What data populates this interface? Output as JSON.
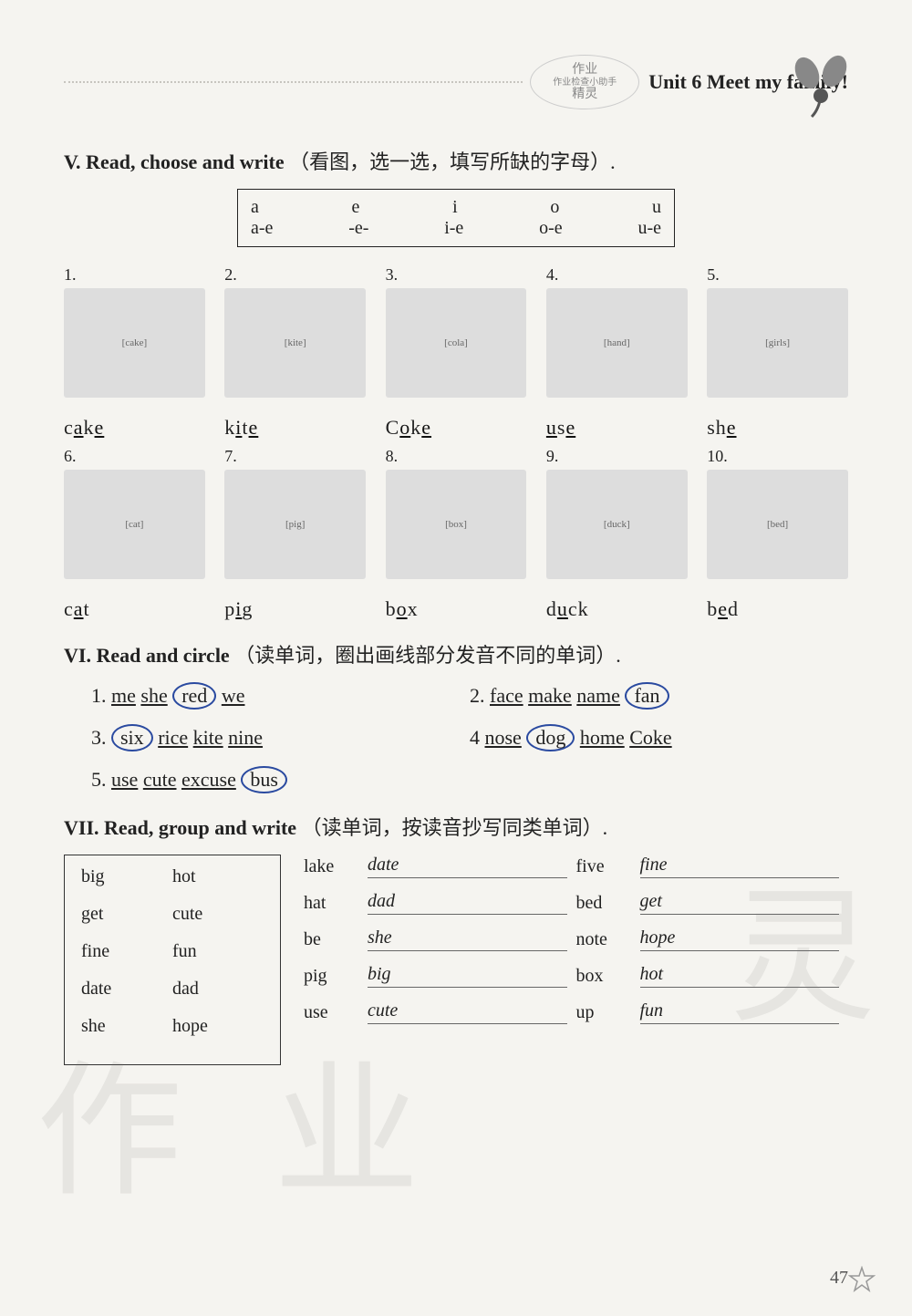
{
  "header": {
    "stamp_top": "作业",
    "stamp_mid": "作业检查小助手",
    "stamp_bot": "精灵",
    "unit_title": "Unit 6  Meet my family!"
  },
  "sectionV": {
    "title_en": "V. Read, choose and write",
    "title_cn": "（看图，选一选，填写所缺的字母）.",
    "vowels_row1": [
      "a",
      "e",
      "i",
      "o",
      "u"
    ],
    "vowels_row2": [
      "a-e",
      "-e-",
      "i-e",
      "o-e",
      "u-e"
    ],
    "items": [
      {
        "num": "1.",
        "img": "cake",
        "pre": "c",
        "ans": "a",
        "mid": "k",
        "ans2": "e",
        "post": ""
      },
      {
        "num": "2.",
        "img": "kite",
        "pre": "k",
        "ans": "i",
        "mid": "t",
        "ans2": "e",
        "post": ""
      },
      {
        "num": "3.",
        "img": "cola",
        "pre": "C",
        "ans": "o",
        "mid": "k",
        "ans2": "e",
        "post": ""
      },
      {
        "num": "4.",
        "img": "hand",
        "pre": "",
        "ans": "u",
        "mid": "s",
        "ans2": "e",
        "post": ""
      },
      {
        "num": "5.",
        "img": "girls",
        "pre": "sh",
        "ans": "e",
        "mid": "",
        "ans2": "",
        "post": ""
      },
      {
        "num": "6.",
        "img": "cat",
        "pre": "c",
        "ans": "a",
        "mid": "",
        "ans2": "",
        "post": "t"
      },
      {
        "num": "7.",
        "img": "pig",
        "pre": "p",
        "ans": "i",
        "mid": "",
        "ans2": "",
        "post": "g"
      },
      {
        "num": "8.",
        "img": "box",
        "pre": "b",
        "ans": "o",
        "mid": "",
        "ans2": "",
        "post": "x"
      },
      {
        "num": "9.",
        "img": "duck",
        "pre": "d",
        "ans": "u",
        "mid": "",
        "ans2": "",
        "post": "ck"
      },
      {
        "num": "10.",
        "img": "bed",
        "pre": "b",
        "ans": "e",
        "mid": "",
        "ans2": "",
        "post": "d"
      }
    ]
  },
  "sectionVI": {
    "title_en": "VI. Read and circle",
    "title_cn": "（读单词，圈出画线部分发音不同的单词）.",
    "lines": [
      {
        "num": "1.",
        "words": [
          "me",
          "she",
          "red",
          "we"
        ],
        "circled": "red"
      },
      {
        "num": "2.",
        "words": [
          "face",
          "make",
          "name",
          "fan"
        ],
        "circled": "fan"
      },
      {
        "num": "3.",
        "words": [
          "six",
          "rice",
          "kite",
          "nine"
        ],
        "circled": "six"
      },
      {
        "num": "4",
        "words": [
          "nose",
          "dog",
          "home",
          "Coke"
        ],
        "circled": "dog"
      },
      {
        "num": "5.",
        "words": [
          "use",
          "cute",
          "excuse",
          "bus"
        ],
        "circled": "bus"
      }
    ]
  },
  "sectionVII": {
    "title_en": "VII. Read, group and write",
    "title_cn": "（读单词，按读音抄写同类单词）.",
    "wordbank": [
      [
        "big",
        "hot"
      ],
      [
        "get",
        "cute"
      ],
      [
        "fine",
        "fun"
      ],
      [
        "date",
        "dad"
      ],
      [
        "she",
        "hope"
      ]
    ],
    "rows": [
      {
        "lbl": "lake",
        "ans1": "date",
        "lbl2": "five",
        "ans2": "fine"
      },
      {
        "lbl": "hat",
        "ans1": "dad",
        "lbl2": "bed",
        "ans2": "get"
      },
      {
        "lbl": "be",
        "ans1": "she",
        "lbl2": "note",
        "ans2": "hope"
      },
      {
        "lbl": "pig",
        "ans1": "big",
        "lbl2": "box",
        "ans2": "hot"
      },
      {
        "lbl": "use",
        "ans1": "cute",
        "lbl2": "up",
        "ans2": "fun"
      }
    ]
  },
  "page_number": "47",
  "watermark": {
    "c1": "作",
    "c2": "业",
    "c3": "灵",
    "c4": "灵"
  }
}
